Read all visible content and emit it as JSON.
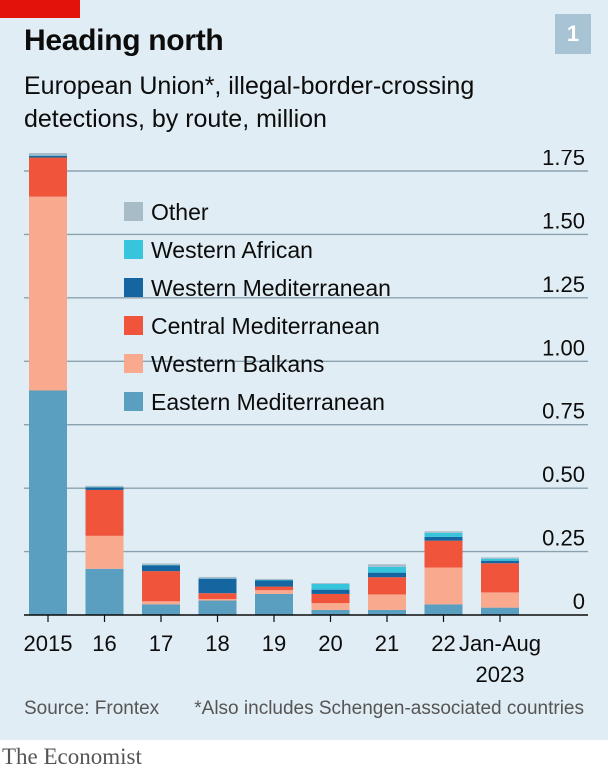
{
  "header": {
    "title": "Heading north",
    "badge": "1",
    "subtitle": "European Union*, illegal-border-crossing detections, by route, million"
  },
  "footer": {
    "source": "Source: Frontex",
    "note": "*Also includes Schengen-associated countries",
    "brand": "The Economist"
  },
  "colors": {
    "accent": "#e3120b",
    "panel": "#e1edf4",
    "gridline": "#8aa2b0"
  },
  "chart_data": {
    "type": "bar",
    "stacked": true,
    "title": "Heading north",
    "subtitle": "European Union*, illegal-border-crossing detections, by route, million",
    "xlabel": "",
    "ylabel": "",
    "ylim": [
      0,
      1.75
    ],
    "yticks": [
      {
        "value": 0,
        "label": "0"
      },
      {
        "value": 0.25,
        "label": "0.25"
      },
      {
        "value": 0.5,
        "label": "0.50"
      },
      {
        "value": 0.75,
        "label": "0.75"
      },
      {
        "value": 1.0,
        "label": "1.00"
      },
      {
        "value": 1.25,
        "label": "1.25"
      },
      {
        "value": 1.5,
        "label": "1.50"
      },
      {
        "value": 1.75,
        "label": "1.75"
      }
    ],
    "axis_side": "right",
    "grid": true,
    "legend_position": "top-left",
    "categories": [
      "2015",
      "16",
      "17",
      "18",
      "19",
      "20",
      "21",
      "22",
      "Jan-Aug 2023"
    ],
    "category_label_lines": [
      [
        "2015"
      ],
      [
        "16"
      ],
      [
        "17"
      ],
      [
        "18"
      ],
      [
        "19"
      ],
      [
        "20"
      ],
      [
        "21"
      ],
      [
        "22"
      ],
      [
        "Jan-Aug",
        "2023"
      ]
    ],
    "series": [
      {
        "name": "Eastern Mediterranean",
        "color": "#5b9fc0",
        "values": [
          0.885,
          0.182,
          0.042,
          0.057,
          0.083,
          0.02,
          0.02,
          0.042,
          0.029
        ]
      },
      {
        "name": "Western Balkans",
        "color": "#f9a98e",
        "values": [
          0.764,
          0.13,
          0.012,
          0.006,
          0.015,
          0.027,
          0.061,
          0.145,
          0.06
        ]
      },
      {
        "name": "Central Mediterranean",
        "color": "#f0553c",
        "values": [
          0.154,
          0.181,
          0.119,
          0.023,
          0.014,
          0.036,
          0.068,
          0.106,
          0.115
        ]
      },
      {
        "name": "Western Mediterranean",
        "color": "#1566a0",
        "values": [
          0.007,
          0.01,
          0.023,
          0.057,
          0.024,
          0.017,
          0.018,
          0.015,
          0.01
        ]
      },
      {
        "name": "Western African",
        "color": "#36c5dc",
        "values": [
          0.001,
          0.001,
          0.001,
          0.001,
          0.002,
          0.023,
          0.023,
          0.016,
          0.008
        ]
      },
      {
        "name": "Other",
        "color": "#a8bcc8",
        "values": [
          0.01,
          0.005,
          0.006,
          0.006,
          0.004,
          0.003,
          0.01,
          0.006,
          0.005
        ]
      }
    ],
    "legend_order": [
      "Other",
      "Western African",
      "Western Mediterranean",
      "Central Mediterranean",
      "Western Balkans",
      "Eastern Mediterranean"
    ]
  }
}
